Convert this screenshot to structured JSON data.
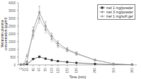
{
  "chart_data": {
    "type": "line",
    "xlabel": "Time (min)",
    "ylabel": "Melatonin plasma\nconcentration (pg/ml)",
    "x": [
      0,
      10,
      20,
      40,
      60,
      80,
      100,
      120,
      150,
      180,
      240,
      300,
      360
    ],
    "series": [
      {
        "name": "mel 1 mg/powder",
        "color": "#444444",
        "marker": "square",
        "line_style": "solid",
        "values": [
          5,
          10,
          30,
          380,
          520,
          400,
          310,
          240,
          180,
          130,
          60,
          20,
          5
        ],
        "errors": [
          3,
          5,
          10,
          50,
          65,
          45,
          35,
          30,
          25,
          20,
          12,
          8,
          3
        ]
      },
      {
        "name": "mel 3 mg/powder",
        "color": "#888888",
        "marker": "plus",
        "line_style": "solid",
        "values": [
          5,
          20,
          200,
          2200,
          3400,
          2500,
          1850,
          1400,
          1000,
          750,
          320,
          70,
          10
        ],
        "errors": [
          3,
          8,
          40,
          250,
          380,
          280,
          200,
          150,
          110,
          90,
          50,
          18,
          5
        ]
      },
      {
        "name": "mel 1 mg/soft gel",
        "color": "#aaaaaa",
        "marker": "triangle",
        "line_style": "solid",
        "values": [
          5,
          40,
          600,
          1900,
          3000,
          2300,
          1700,
          1250,
          950,
          700,
          300,
          65,
          10
        ],
        "errors": [
          3,
          12,
          90,
          220,
          320,
          260,
          190,
          140,
          110,
          85,
          45,
          15,
          5
        ]
      }
    ],
    "xlim": [
      -8,
      375
    ],
    "xticks": [
      0,
      10,
      20,
      40,
      60,
      80,
      100,
      120,
      150,
      180,
      240,
      300,
      360
    ],
    "ylim": [
      0,
      4000
    ],
    "yticks": [
      0,
      500,
      1000,
      1500,
      2000,
      2500,
      3000,
      3500,
      4000
    ],
    "grid": false,
    "legend": "upper right"
  }
}
